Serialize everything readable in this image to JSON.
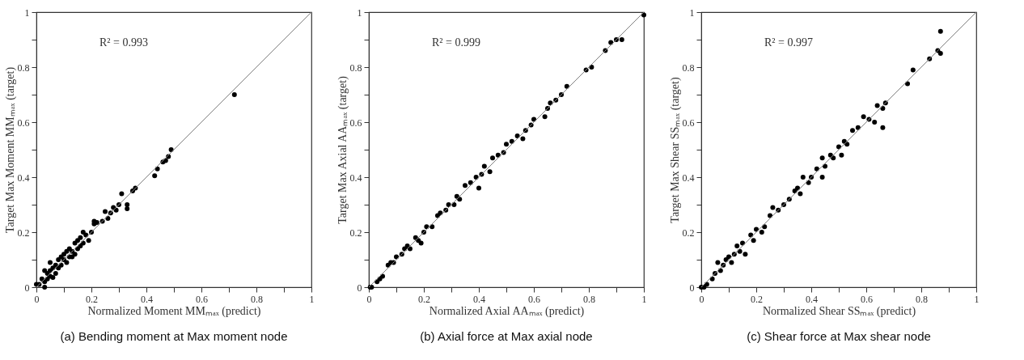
{
  "chart_data": [
    {
      "type": "scatter",
      "xlabel": "Normalized Moment MMₘₐₓ (predict)",
      "ylabel": "Target Max Moment MMₘₐₓ (target)",
      "annotations": [
        "R² = 0.993",
        "(a) Bending moment at Max moment node"
      ],
      "marker": "circle",
      "grid": false,
      "legend": false,
      "xlim": [
        0,
        1
      ],
      "ylim": [
        0,
        1
      ],
      "xticks": [
        0,
        {
          "value": 0.1,
          "label": null
        },
        0.2,
        {
          "value": 0.3,
          "label": null
        },
        0.4,
        {
          "value": 0.5,
          "label": null
        },
        0.6,
        {
          "value": 0.7,
          "label": null
        },
        0.8,
        {
          "value": 0.9,
          "label": null
        },
        1
      ],
      "yticks": [
        0,
        {
          "value": 0.1,
          "label": null
        },
        0.2,
        {
          "value": 0.3,
          "label": null
        },
        0.4,
        {
          "value": 0.5,
          "label": null
        },
        0.6,
        {
          "value": 0.7,
          "label": null
        },
        0.8,
        {
          "value": 0.9,
          "label": null
        },
        1
      ],
      "series": [
        {
          "type": "scatter",
          "color": "#000000",
          "x": [
            0.72,
            0.49,
            0.48,
            0.47,
            0.46,
            0.44,
            0.43,
            0.36,
            0.35,
            0.31,
            0.33,
            0.33,
            0.3,
            0.29,
            0.28,
            0.27,
            0.25,
            0.26,
            0.24,
            0.22,
            0.21,
            0.21,
            0.2,
            0.19,
            0.18,
            0.17,
            0.16,
            0.16,
            0.15,
            0.15,
            0.14,
            0.13,
            0.12,
            0.12,
            0.11,
            0.1,
            0.1,
            0.09,
            0.08,
            0.08,
            0.07,
            0.06,
            0.06,
            0.05,
            0.05,
            0.04,
            0.04,
            0.03,
            0.03,
            0.02,
            0.01,
            0.03,
            0.0,
            0.11,
            0.13,
            0.14,
            0.17,
            0.09,
            0.07,
            0.05
          ],
          "values": [
            0.7,
            0.5,
            0.475,
            0.46,
            0.455,
            0.43,
            0.405,
            0.36,
            0.35,
            0.34,
            0.3,
            0.285,
            0.3,
            0.28,
            0.29,
            0.27,
            0.275,
            0.25,
            0.24,
            0.235,
            0.24,
            0.23,
            0.2,
            0.17,
            0.19,
            0.2,
            0.18,
            0.15,
            0.17,
            0.14,
            0.16,
            0.13,
            0.14,
            0.11,
            0.13,
            0.12,
            0.1,
            0.08,
            0.1,
            0.07,
            0.08,
            0.07,
            0.035,
            0.09,
            0.06,
            0.05,
            0.03,
            0.06,
            0.02,
            0.03,
            0.01,
            0.0,
            0.01,
            0.09,
            0.11,
            0.12,
            0.16,
            0.11,
            0.05,
            0.04
          ]
        },
        {
          "type": "line",
          "marker": "none",
          "color": "#808080",
          "x": [
            0,
            1
          ],
          "values": [
            0,
            1
          ]
        }
      ]
    },
    {
      "type": "scatter",
      "xlabel": "Normalized Axial AAₘₐₓ (predict)",
      "ylabel": "Target Max Axial AAₘₐₓ (target)",
      "annotations": [
        "R² = 0.999",
        "(b) Axial force at Max axial node"
      ],
      "marker": "circle",
      "grid": false,
      "legend": false,
      "xlim": [
        0,
        1
      ],
      "ylim": [
        0,
        1
      ],
      "xticks": [
        0,
        {
          "value": 0.1,
          "label": null
        },
        0.2,
        {
          "value": 0.3,
          "label": null
        },
        0.4,
        {
          "value": 0.5,
          "label": null
        },
        0.6,
        {
          "value": 0.7,
          "label": null
        },
        0.8,
        {
          "value": 0.9,
          "label": null
        },
        1
      ],
      "yticks": [
        0,
        {
          "value": 0.1,
          "label": null
        },
        0.2,
        {
          "value": 0.3,
          "label": null
        },
        0.4,
        {
          "value": 0.5,
          "label": null
        },
        0.6,
        {
          "value": 0.7,
          "label": null
        },
        0.8,
        {
          "value": 0.9,
          "label": null
        },
        1
      ],
      "series": [
        {
          "type": "scatter",
          "color": "#000000",
          "x": [
            0.005,
            0.01,
            0.03,
            0.04,
            0.05,
            0.07,
            0.08,
            0.09,
            0.1,
            0.12,
            0.13,
            0.14,
            0.15,
            0.17,
            0.18,
            0.19,
            0.2,
            0.21,
            0.23,
            0.25,
            0.26,
            0.28,
            0.29,
            0.31,
            0.32,
            0.33,
            0.35,
            0.37,
            0.39,
            0.4,
            0.41,
            0.42,
            0.44,
            0.45,
            0.47,
            0.49,
            0.5,
            0.52,
            0.54,
            0.56,
            0.57,
            0.59,
            0.6,
            0.64,
            0.65,
            0.66,
            0.68,
            0.7,
            0.72,
            0.79,
            0.81,
            0.86,
            0.88,
            0.9,
            0.92,
            1.0
          ],
          "values": [
            0.0,
            0.0,
            0.02,
            0.03,
            0.04,
            0.08,
            0.09,
            0.09,
            0.11,
            0.12,
            0.14,
            0.15,
            0.14,
            0.18,
            0.17,
            0.16,
            0.2,
            0.22,
            0.22,
            0.26,
            0.27,
            0.28,
            0.3,
            0.3,
            0.33,
            0.32,
            0.37,
            0.38,
            0.4,
            0.36,
            0.41,
            0.44,
            0.42,
            0.47,
            0.48,
            0.49,
            0.52,
            0.53,
            0.55,
            0.54,
            0.57,
            0.59,
            0.61,
            0.62,
            0.65,
            0.67,
            0.68,
            0.7,
            0.73,
            0.79,
            0.8,
            0.86,
            0.89,
            0.9,
            0.9,
            0.99
          ]
        },
        {
          "type": "line",
          "marker": "none",
          "color": "#808080",
          "x": [
            0,
            1
          ],
          "values": [
            0,
            1
          ]
        }
      ]
    },
    {
      "type": "scatter",
      "xlabel": "Normalized Shear SSₘₐₓ (predict)",
      "ylabel": "Target Max Shear SSₘₐₓ (target)",
      "annotations": [
        "R² = 0.997",
        "(c) Shear force at Max shear node"
      ],
      "marker": "circle",
      "grid": false,
      "legend": false,
      "xlim": [
        0,
        1
      ],
      "ylim": [
        0,
        1
      ],
      "xticks": [
        0,
        {
          "value": 0.1,
          "label": null
        },
        0.2,
        {
          "value": 0.3,
          "label": null
        },
        0.4,
        {
          "value": 0.5,
          "label": null
        },
        0.6,
        {
          "value": 0.7,
          "label": null
        },
        0.8,
        {
          "value": 0.9,
          "label": null
        },
        1
      ],
      "yticks": [
        0,
        {
          "value": 0.1,
          "label": null
        },
        0.2,
        {
          "value": 0.3,
          "label": null
        },
        0.4,
        {
          "value": 0.5,
          "label": null
        },
        0.6,
        {
          "value": 0.7,
          "label": null
        },
        0.8,
        {
          "value": 0.9,
          "label": null
        },
        1
      ],
      "series": [
        {
          "type": "scatter",
          "color": "#000000",
          "x": [
            0.0,
            0.01,
            0.02,
            0.04,
            0.05,
            0.06,
            0.07,
            0.08,
            0.09,
            0.1,
            0.11,
            0.12,
            0.13,
            0.14,
            0.15,
            0.16,
            0.18,
            0.19,
            0.2,
            0.22,
            0.23,
            0.25,
            0.26,
            0.28,
            0.3,
            0.32,
            0.34,
            0.35,
            0.36,
            0.37,
            0.39,
            0.4,
            0.42,
            0.44,
            0.44,
            0.45,
            0.47,
            0.48,
            0.5,
            0.51,
            0.52,
            0.53,
            0.55,
            0.57,
            0.59,
            0.61,
            0.63,
            0.64,
            0.66,
            0.66,
            0.67,
            0.75,
            0.77,
            0.83,
            0.86,
            0.87,
            0.87
          ],
          "values": [
            0.0,
            0.0,
            0.01,
            0.03,
            0.05,
            0.09,
            0.06,
            0.08,
            0.1,
            0.11,
            0.09,
            0.12,
            0.15,
            0.13,
            0.16,
            0.12,
            0.19,
            0.17,
            0.21,
            0.2,
            0.22,
            0.26,
            0.29,
            0.28,
            0.3,
            0.32,
            0.35,
            0.36,
            0.34,
            0.4,
            0.38,
            0.4,
            0.43,
            0.47,
            0.4,
            0.44,
            0.48,
            0.47,
            0.51,
            0.48,
            0.53,
            0.52,
            0.57,
            0.58,
            0.62,
            0.61,
            0.6,
            0.66,
            0.65,
            0.58,
            0.67,
            0.74,
            0.79,
            0.83,
            0.86,
            0.85,
            0.93
          ]
        },
        {
          "type": "line",
          "marker": "none",
          "color": "#808080",
          "x": [
            0,
            1
          ],
          "values": [
            0,
            1
          ]
        }
      ]
    }
  ]
}
